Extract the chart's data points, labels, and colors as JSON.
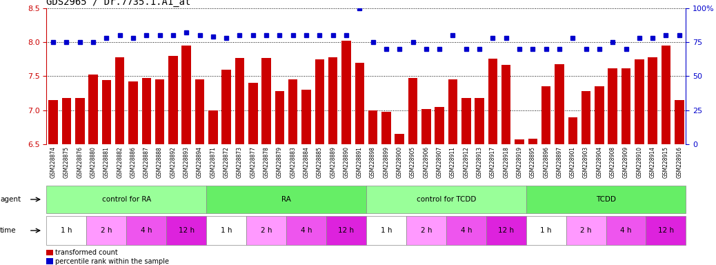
{
  "title": "GDS2965 / Dr.7735.1.A1_at",
  "ylim_left": [
    6.5,
    8.5
  ],
  "ylim_right": [
    0,
    100
  ],
  "yticks_left": [
    6.5,
    7.0,
    7.5,
    8.0,
    8.5
  ],
  "yticks_right": [
    0,
    25,
    50,
    75,
    100
  ],
  "bar_color": "#CC0000",
  "dot_color": "#0000CC",
  "categories": [
    "GSM228874",
    "GSM228875",
    "GSM228876",
    "GSM228880",
    "GSM228881",
    "GSM228882",
    "GSM228886",
    "GSM228887",
    "GSM228888",
    "GSM228892",
    "GSM228893",
    "GSM228894",
    "GSM228871",
    "GSM228872",
    "GSM228873",
    "GSM228877",
    "GSM228878",
    "GSM228879",
    "GSM228883",
    "GSM228884",
    "GSM228885",
    "GSM228889",
    "GSM228890",
    "GSM228891",
    "GSM228898",
    "GSM228899",
    "GSM228900",
    "GSM228905",
    "GSM228906",
    "GSM228907",
    "GSM228911",
    "GSM228912",
    "GSM228913",
    "GSM228917",
    "GSM228918",
    "GSM228919",
    "GSM228895",
    "GSM228896",
    "GSM228897",
    "GSM228901",
    "GSM228903",
    "GSM228904",
    "GSM228908",
    "GSM228909",
    "GSM228910",
    "GSM228914",
    "GSM228915",
    "GSM228916"
  ],
  "bar_values": [
    7.15,
    7.18,
    7.18,
    7.52,
    7.44,
    7.78,
    7.42,
    7.47,
    7.45,
    7.8,
    7.95,
    7.45,
    7.0,
    7.6,
    7.77,
    7.4,
    7.77,
    7.28,
    7.45,
    7.3,
    7.75,
    7.78,
    8.02,
    7.7,
    7.0,
    6.98,
    6.65,
    7.47,
    7.02,
    7.05,
    7.45,
    7.18,
    7.18,
    7.76,
    7.67,
    6.57,
    6.58,
    7.35,
    7.68,
    6.9,
    7.28,
    7.35,
    7.62,
    7.62,
    7.75,
    7.78,
    7.95,
    7.15
  ],
  "dot_values": [
    75,
    75,
    75,
    75,
    78,
    80,
    78,
    80,
    80,
    80,
    82,
    80,
    79,
    78,
    80,
    80,
    80,
    80,
    80,
    80,
    80,
    80,
    80,
    100,
    75,
    70,
    70,
    75,
    70,
    70,
    80,
    70,
    70,
    78,
    78,
    70,
    70,
    70,
    70,
    78,
    70,
    70,
    75,
    70,
    78,
    78,
    80,
    80
  ],
  "agent_groups": [
    {
      "label": "control for RA",
      "start": 0,
      "end": 12,
      "color": "#99FF99"
    },
    {
      "label": "RA",
      "start": 12,
      "end": 24,
      "color": "#66EE66"
    },
    {
      "label": "control for TCDD",
      "start": 24,
      "end": 36,
      "color": "#99FF99"
    },
    {
      "label": "TCDD",
      "start": 36,
      "end": 48,
      "color": "#66EE66"
    }
  ],
  "time_groups": [
    {
      "label": "1 h",
      "start": 0,
      "end": 3,
      "color": "#FFFFFF"
    },
    {
      "label": "2 h",
      "start": 3,
      "end": 6,
      "color": "#FF99FF"
    },
    {
      "label": "4 h",
      "start": 6,
      "end": 9,
      "color": "#EE55EE"
    },
    {
      "label": "12 h",
      "start": 9,
      "end": 12,
      "color": "#DD22DD"
    },
    {
      "label": "1 h",
      "start": 12,
      "end": 15,
      "color": "#FFFFFF"
    },
    {
      "label": "2 h",
      "start": 15,
      "end": 18,
      "color": "#FF99FF"
    },
    {
      "label": "4 h",
      "start": 18,
      "end": 21,
      "color": "#EE55EE"
    },
    {
      "label": "12 h",
      "start": 21,
      "end": 24,
      "color": "#DD22DD"
    },
    {
      "label": "1 h",
      "start": 24,
      "end": 27,
      "color": "#FFFFFF"
    },
    {
      "label": "2 h",
      "start": 27,
      "end": 30,
      "color": "#FF99FF"
    },
    {
      "label": "4 h",
      "start": 30,
      "end": 33,
      "color": "#EE55EE"
    },
    {
      "label": "12 h",
      "start": 33,
      "end": 36,
      "color": "#DD22DD"
    },
    {
      "label": "1 h",
      "start": 36,
      "end": 39,
      "color": "#FFFFFF"
    },
    {
      "label": "2 h",
      "start": 39,
      "end": 42,
      "color": "#FF99FF"
    },
    {
      "label": "4 h",
      "start": 42,
      "end": 45,
      "color": "#EE55EE"
    },
    {
      "label": "12 h",
      "start": 45,
      "end": 48,
      "color": "#DD22DD"
    }
  ],
  "legend_bar_label": "transformed count",
  "legend_dot_label": "percentile rank within the sample",
  "left_axis_color": "#CC0000",
  "right_axis_color": "#0000CC",
  "agent_label": "agent",
  "time_label": "time"
}
